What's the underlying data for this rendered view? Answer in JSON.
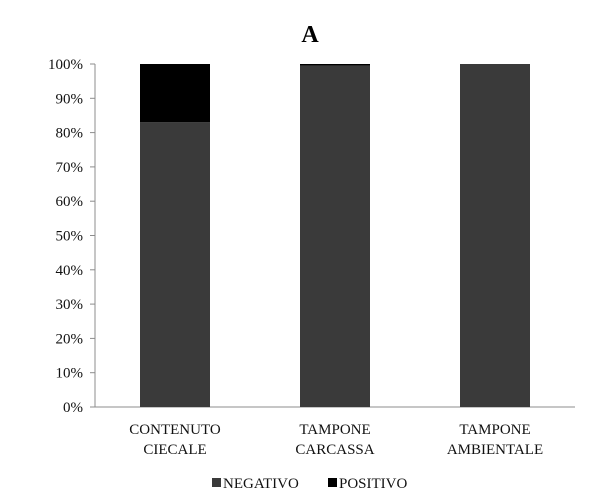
{
  "chart_data": {
    "type": "bar",
    "stacked": true,
    "title": "A",
    "categories": [
      [
        "CONTENUTO",
        "CIECALE"
      ],
      [
        "TAMPONE",
        "CARCASSA"
      ],
      [
        "TAMPONE",
        "AMBIENTALE"
      ]
    ],
    "series": [
      {
        "name": "NEGATIVO",
        "values": [
          83,
          99.5,
          100
        ],
        "color": "#3a3a3a"
      },
      {
        "name": "POSITIVO",
        "values": [
          17,
          0.5,
          0
        ],
        "color": "#000000"
      }
    ],
    "ylim": [
      0,
      100
    ],
    "yticks": [
      "0%",
      "10%",
      "20%",
      "30%",
      "40%",
      "50%",
      "60%",
      "70%",
      "80%",
      "90%",
      "100%"
    ],
    "grid": false,
    "legend_position": "bottom"
  }
}
